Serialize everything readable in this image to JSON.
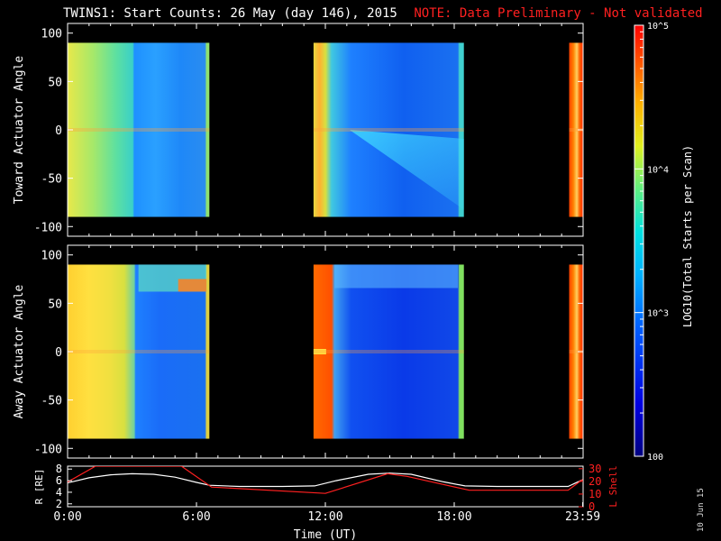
{
  "title": {
    "main": "TWINS1: Start Counts: 26 May (day 146), 2015",
    "note": "NOTE: Data Preliminary - Not validated"
  },
  "datestamp": "10 Jun 15",
  "colors": {
    "background": "#000000",
    "axes": "#ffffff",
    "warning": "#ff2020",
    "r_line": "#ffffff",
    "l_line": "#ff2020"
  },
  "chart_data": [
    {
      "type": "heatmap",
      "ylabel": "Toward Actuator Angle",
      "ylim": [
        -110,
        110
      ],
      "yticks": [
        "100",
        "50",
        "0",
        "-50",
        "-100"
      ],
      "ytick_values": [
        100,
        50,
        0,
        -50,
        -100
      ],
      "xlim_hours": [
        0,
        24
      ],
      "data_extent": [
        -90,
        90
      ],
      "segments": [
        {
          "start": 0.0,
          "end": 6.6
        },
        {
          "start": 11.45,
          "end": 18.45
        },
        {
          "start": 23.35,
          "end": 24.0
        }
      ]
    },
    {
      "type": "heatmap",
      "ylabel": "Away Actuator Angle",
      "ylim": [
        -110,
        110
      ],
      "yticks": [
        "100",
        "50",
        "0",
        "-50",
        "-100"
      ],
      "ytick_values": [
        100,
        50,
        0,
        -50,
        -100
      ],
      "xlim_hours": [
        0,
        24
      ],
      "data_extent": [
        -90,
        90
      ],
      "segments": [
        {
          "start": 0.0,
          "end": 6.6
        },
        {
          "start": 11.45,
          "end": 18.45
        },
        {
          "start": 23.35,
          "end": 24.0
        }
      ]
    },
    {
      "type": "line",
      "xlabel": "Time (UT)",
      "x_ticks": [
        "0:00",
        "6:00",
        "12:00",
        "18:00",
        "23:59"
      ],
      "x_tick_values": [
        0,
        6,
        12,
        18,
        23.98
      ],
      "ylabel_left": "R [RE]",
      "ylabel_right": "L Shell",
      "yticks_left": [
        "8",
        "6",
        "4",
        "2"
      ],
      "ytick_left_values": [
        8,
        6,
        4,
        2
      ],
      "ylim_left": [
        1.5,
        8.5
      ],
      "yticks_right": [
        "30",
        "20",
        "10",
        "0"
      ],
      "ytick_right_values": [
        30,
        20,
        10,
        0
      ],
      "ylim_right": [
        0,
        32
      ],
      "series": [
        {
          "name": "R",
          "axis": "left",
          "x": [
            0,
            1,
            2,
            3,
            4,
            5,
            6,
            6.6,
            8,
            10,
            11.5,
            12.5,
            14,
            15,
            16,
            17.5,
            18.5,
            20,
            22,
            23.3,
            24
          ],
          "values": [
            5.6,
            6.5,
            7.0,
            7.2,
            7.1,
            6.6,
            5.7,
            5.2,
            5.0,
            5.0,
            5.1,
            6.0,
            7.1,
            7.3,
            7.1,
            5.8,
            5.1,
            5.0,
            5.0,
            5.0,
            6.2
          ]
        },
        {
          "name": "L Shell",
          "axis": "right",
          "x": [
            0,
            1.3,
            5.3,
            6.7,
            12.0,
            14.9,
            15.8,
            18.7,
            23.3,
            23.98
          ],
          "values": [
            19.5,
            32,
            32,
            15.5,
            10.5,
            26,
            24,
            13.0,
            13.0,
            21.5
          ]
        }
      ]
    }
  ],
  "colorbar": {
    "label": "LOG10(Total Starts per Scan)",
    "tick_labels": [
      "10^5",
      "10^4",
      "10^3",
      "100"
    ],
    "tick_values": [
      100000,
      10000,
      1000,
      100
    ],
    "range": [
      100,
      100000
    ],
    "scale": "log"
  }
}
